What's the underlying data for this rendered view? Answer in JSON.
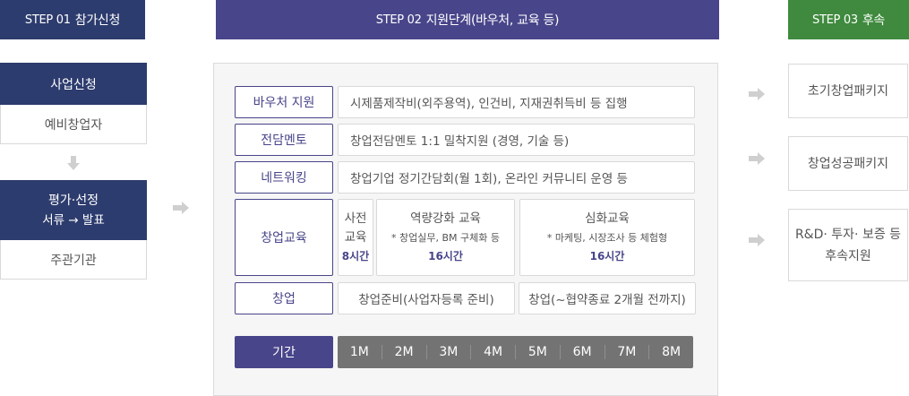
{
  "step1": {
    "header_step": "STEP 01",
    "header_title": "참가신청",
    "block1_title": "사업신청",
    "block1_sub": "예비창업자",
    "block2_title": "평가·선정",
    "block2_detail": "서류 → 발표",
    "block2_sub": "주관기관"
  },
  "step2": {
    "header_step": "STEP 02",
    "header_title": "지원단계(바우처, 교육 등)",
    "rows": [
      {
        "tag": "바우처 지원",
        "text": "시제품제작비(외주용역), 인건비, 지재권취득비 등 집행"
      },
      {
        "tag": "전담멘토",
        "text": "창업전담멘토 1:1 밀착지원 (경영, 기술 등)"
      },
      {
        "tag": "네트워킹",
        "text": "창업기업 정기간담회(월 1회), 온라인 커뮤니티 운영 등"
      }
    ],
    "education": {
      "tag": "창업교육",
      "pre_line1": "사전",
      "pre_line2": "교육",
      "pre_hours": "8시간",
      "strength_title": "역량강화 교육",
      "strength_sub": "* 창업실무, BM 구체화 등",
      "strength_hours": "16시간",
      "deep_title": "심화교육",
      "deep_sub": "* 마케팅, 시장조사 등 체험형",
      "deep_hours": "16시간"
    },
    "startup": {
      "tag": "창업",
      "prep": "창업준비(사업자등록 준비)",
      "launch": "창업(~협약종료 2개월 전까지)"
    },
    "period_label": "기간",
    "months": [
      "1M",
      "2M",
      "3M",
      "4M",
      "5M",
      "6M",
      "7M",
      "8M"
    ]
  },
  "step3": {
    "header_step": "STEP 03",
    "header_title": "후속",
    "packages": [
      "초기창업패키지",
      "창업성공패키지"
    ],
    "support_line1": "R&D· 투자· 보증 등",
    "support_line2": "후속지원"
  },
  "colors": {
    "navy": "#2d3c6e",
    "purple": "#48458a",
    "green": "#3f8a3e",
    "month_bar": "#737373"
  }
}
